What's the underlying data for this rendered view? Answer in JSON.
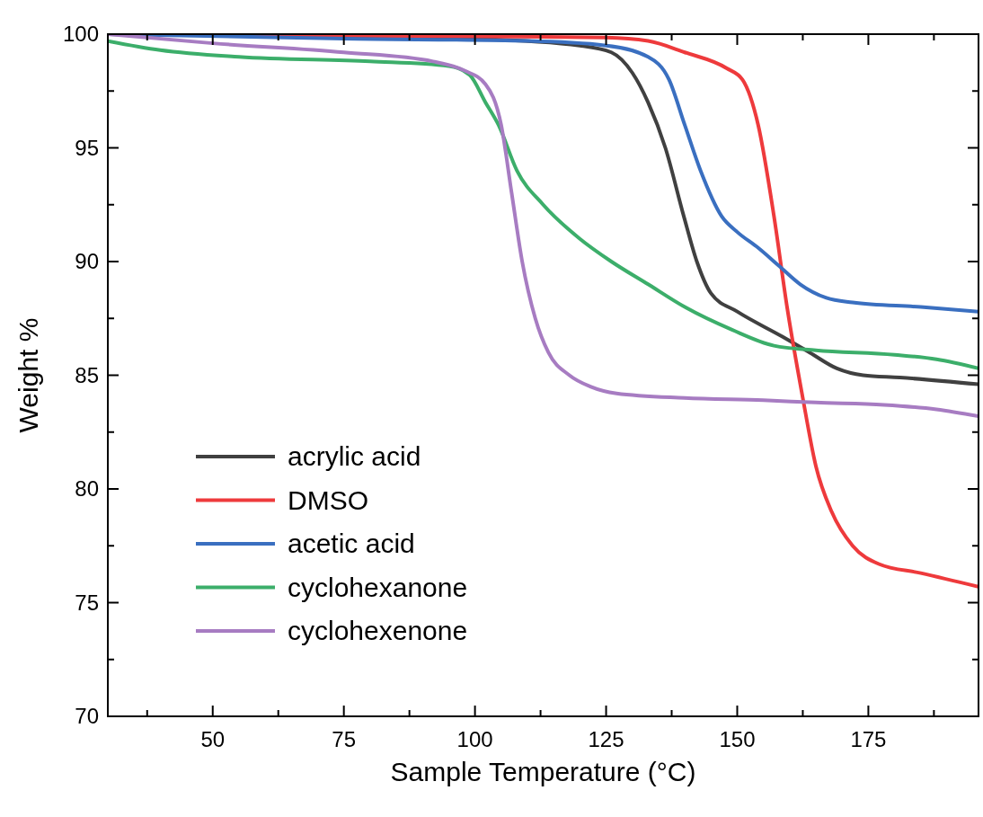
{
  "chart_data": {
    "type": "line",
    "xlabel": "Sample Temperature (°C)",
    "ylabel": "Weight %",
    "xlim": [
      30,
      196
    ],
    "ylim": [
      70,
      100
    ],
    "xticks": [
      {
        "value": 37.5,
        "label": null
      },
      50,
      {
        "value": 62.5,
        "label": null
      },
      75,
      {
        "value": 87.5,
        "label": null
      },
      100,
      {
        "value": 112.5,
        "label": null
      },
      125,
      {
        "value": 137.5,
        "label": null
      },
      150,
      {
        "value": 162.5,
        "label": null
      },
      175,
      {
        "value": 187.5,
        "label": null
      }
    ],
    "yticks": [
      70,
      {
        "value": 72.5,
        "label": null
      },
      75,
      {
        "value": 77.5,
        "label": null
      },
      80,
      {
        "value": 82.5,
        "label": null
      },
      85,
      {
        "value": 87.5,
        "label": null
      },
      90,
      {
        "value": 92.5,
        "label": null
      },
      95,
      {
        "value": 97.5,
        "label": null
      },
      100
    ],
    "grid": false,
    "legend": "bottom left",
    "line_style": "solid",
    "series": [
      {
        "name": "acrylic acid",
        "color": "#404040",
        "x": [
          30,
          75,
          100,
          120,
          126,
          130,
          133,
          136.3,
          139.8,
          142.3,
          145,
          150,
          158.6,
          163.8,
          169,
          174,
          181,
          196
        ],
        "values": [
          100,
          99.9,
          99.8,
          99.5,
          99.2,
          98.3,
          97,
          95,
          92,
          90,
          88.6,
          87.8,
          86.7,
          86.0,
          85.3,
          85.0,
          84.9,
          84.6
        ]
      },
      {
        "name": "DMSO",
        "color": "#ee3a3c",
        "x": [
          30,
          100,
          125,
          133,
          140,
          148,
          151,
          154,
          157,
          159.5,
          162.5,
          165,
          168,
          172,
          177,
          185,
          196
        ],
        "values": [
          100,
          99.9,
          99.85,
          99.7,
          99.2,
          98.5,
          98.0,
          96,
          92,
          88,
          84,
          81,
          79,
          77.5,
          76.7,
          76.3,
          75.7
        ]
      },
      {
        "name": "acetic acid",
        "color": "#3a6fc0",
        "x": [
          30,
          75,
          110,
          125,
          133,
          137,
          140,
          143,
          147,
          150,
          154,
          158,
          162,
          167,
          172,
          185,
          196
        ],
        "values": [
          100,
          99.8,
          99.7,
          99.5,
          99.0,
          98,
          96,
          94,
          92,
          91.3,
          90.6,
          89.8,
          89,
          88.4,
          88.2,
          88.0,
          87.8
        ]
      },
      {
        "name": "cyclohexanone",
        "color": "#3cae6a",
        "x": [
          30,
          40,
          55,
          80,
          95,
          99,
          102,
          104.5,
          108,
          113,
          120,
          126,
          133,
          140,
          149,
          157,
          165,
          180,
          188,
          196
        ],
        "values": [
          99.7,
          99.3,
          99.0,
          98.8,
          98.6,
          98.2,
          97,
          96,
          94,
          92.5,
          91,
          90,
          89,
          88,
          87,
          86.3,
          86.1,
          85.9,
          85.7,
          85.3
        ]
      },
      {
        "name": "cyclohexenone",
        "color": "#a77cc2",
        "x": [
          30,
          50,
          75,
          92,
          98,
          102,
          105,
          107,
          109,
          111.5,
          114,
          118,
          122,
          127,
          140,
          155,
          165,
          178,
          188,
          196
        ],
        "values": [
          100,
          99.6,
          99.2,
          98.8,
          98.4,
          97.8,
          96,
          93,
          90,
          87.5,
          86,
          85,
          84.5,
          84.2,
          84.0,
          83.9,
          83.8,
          83.7,
          83.5,
          83.2
        ]
      }
    ]
  }
}
